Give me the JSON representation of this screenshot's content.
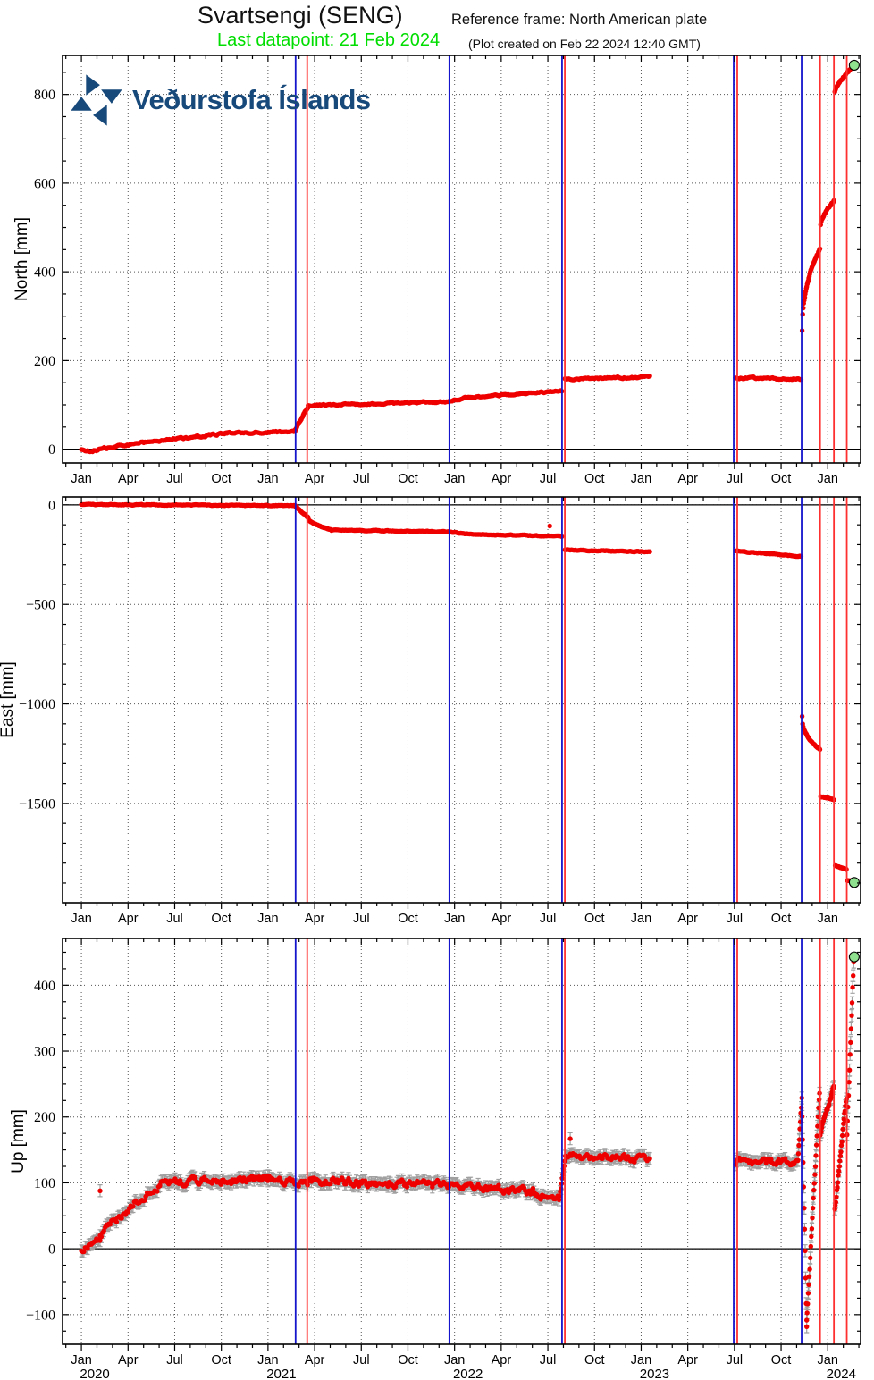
{
  "header": {
    "title": "Svartsengi (SENG)",
    "reference_frame": "Reference frame: North American plate",
    "last_datapoint": "Last datapoint: 21 Feb 2024",
    "created_note": "(Plot created on Feb 22 2024 12:40 GMT)"
  },
  "logo": {
    "text": "Veðurstofa Íslands",
    "icon": "pinwheel-icon"
  },
  "colors": {
    "data_point": "#ee0000",
    "error_bar": "#a0a0a0",
    "event_line_blue": "#1414cc",
    "event_line_red": "#ff3030",
    "last_point_fill": "#8fe08f",
    "subtitle_green": "#00dd00",
    "logo_blue": "#17497b",
    "grid_dotted": "#555555",
    "frame": "#000000"
  },
  "x_axis": {
    "xlim": [
      2019.899,
      2024.176
    ],
    "quarter_label_names": {
      "0": "Jan",
      "3": "Apr",
      "6": "Jul",
      "9": "Oct"
    },
    "years": [
      {
        "t": 2020.0,
        "label": "2020"
      },
      {
        "t": 2021.0,
        "label": "2021"
      },
      {
        "t": 2022.0,
        "label": "2022"
      },
      {
        "t": 2023.0,
        "label": "2023"
      },
      {
        "t": 2024.0,
        "label": "2024"
      }
    ]
  },
  "event_lines": [
    {
      "t": 2021.148,
      "color": "blue"
    },
    {
      "t": 2021.21,
      "color": "red"
    },
    {
      "t": 2021.972,
      "color": "blue"
    },
    {
      "t": 2022.576,
      "color": "blue"
    },
    {
      "t": 2022.591,
      "color": "red"
    },
    {
      "t": 2023.496,
      "color": "blue"
    },
    {
      "t": 2023.515,
      "color": "red"
    },
    {
      "t": 2023.86,
      "color": "blue"
    },
    {
      "t": 2023.959,
      "color": "red"
    },
    {
      "t": 2024.033,
      "color": "red"
    },
    {
      "t": 2024.102,
      "color": "red"
    }
  ],
  "segment_format": [
    "t0_decimal_year",
    "t1_decimal_year",
    "v0_mm",
    "v1_mm",
    "noise_mm",
    "curve_exponent",
    "step_days"
  ],
  "chart_data": [
    {
      "id": "north",
      "type": "scatter",
      "ylabel": "North [mm]",
      "ylim": [
        -31,
        888
      ],
      "ytick_major": 200,
      "ytick_minor": 50,
      "zero_line": true,
      "point_error_mm": 3,
      "segments": [
        [
          2020.0,
          2020.06,
          -2,
          -6,
          2.5,
          1,
          2.5
        ],
        [
          2020.06,
          2020.78,
          -4,
          36,
          3,
          0.8,
          2.5
        ],
        [
          2020.78,
          2021.145,
          36,
          40,
          2.5,
          1,
          2.5
        ],
        [
          2021.145,
          2021.215,
          44,
          96,
          2.5,
          1,
          1.2
        ],
        [
          2021.215,
          2021.97,
          99,
          107,
          2.2,
          1,
          2.5
        ],
        [
          2021.97,
          2022.06,
          108,
          116,
          2,
          1,
          2
        ],
        [
          2022.06,
          2022.575,
          116,
          131,
          2.2,
          1,
          2.5
        ],
        [
          2022.592,
          2023.046,
          158,
          163,
          2.4,
          1,
          2.5
        ],
        [
          2023.505,
          2023.857,
          161,
          158,
          2.4,
          1,
          2.5
        ],
        [
          2023.863,
          2023.958,
          268,
          452,
          3,
          0.45,
          1
        ],
        [
          2023.962,
          2024.033,
          505,
          560,
          2.5,
          0.6,
          1
        ],
        [
          2024.038,
          2024.138,
          806,
          862,
          2.5,
          0.7,
          1
        ]
      ],
      "extra_points": [],
      "last_point": [
        2024.142,
        866
      ]
    },
    {
      "id": "east",
      "type": "scatter",
      "ylabel": "East [mm]",
      "ylim": [
        -1999,
        40
      ],
      "ytick_major": 500,
      "ytick_minor": 100,
      "zero_line": true,
      "point_error_mm": 5,
      "segments": [
        [
          2020.0,
          2021.145,
          2,
          -4,
          2.8,
          1,
          2.5
        ],
        [
          2021.145,
          2021.215,
          -5,
          -62,
          3,
          1,
          1.2
        ],
        [
          2021.215,
          2021.34,
          -64,
          -125,
          3,
          0.5,
          1.2
        ],
        [
          2021.34,
          2021.97,
          -127,
          -134,
          2.8,
          1,
          2.5
        ],
        [
          2021.97,
          2022.06,
          -135,
          -146,
          2.5,
          1,
          2
        ],
        [
          2022.06,
          2022.575,
          -146,
          -158,
          2.8,
          1,
          2.5
        ],
        [
          2022.592,
          2023.046,
          -226,
          -236,
          2.8,
          1,
          2.5
        ],
        [
          2023.505,
          2023.857,
          -232,
          -258,
          2.8,
          1,
          2.5
        ],
        [
          2023.863,
          2023.958,
          -1062,
          -1228,
          4,
          0.4,
          1
        ],
        [
          2023.962,
          2024.033,
          -1466,
          -1480,
          3,
          1,
          1
        ],
        [
          2024.04,
          2024.1,
          -1812,
          -1832,
          3,
          1,
          1
        ],
        [
          2024.105,
          2024.138,
          -1886,
          -1894,
          3,
          1,
          1
        ]
      ],
      "extra_points": [
        [
          2022.51,
          -106
        ]
      ],
      "last_point": [
        2024.142,
        -1897
      ]
    },
    {
      "id": "up",
      "type": "scatter",
      "ylabel": "Up [mm]",
      "ylim": [
        -145,
        471
      ],
      "ytick_major": 100,
      "ytick_minor": 25,
      "zero_line": true,
      "point_error_mm": 9,
      "segments": [
        [
          2020.0,
          2020.1,
          -2,
          18,
          7,
          1,
          2.5
        ],
        [
          2020.1,
          2020.42,
          20,
          98,
          8,
          0.9,
          2.5
        ],
        [
          2020.42,
          2021.0,
          100,
          106,
          8,
          1,
          2.5
        ],
        [
          2021.0,
          2021.5,
          106,
          101,
          8,
          1,
          2.5
        ],
        [
          2021.5,
          2021.99,
          100,
          96,
          8,
          1,
          2.5
        ],
        [
          2021.99,
          2022.42,
          96,
          86,
          8,
          1,
          2.5
        ],
        [
          2022.42,
          2022.56,
          84,
          76,
          7,
          1,
          2.5
        ],
        [
          2022.563,
          2022.594,
          80,
          136,
          5,
          1,
          1.2
        ],
        [
          2022.6,
          2023.046,
          141,
          136,
          7,
          1,
          2.5
        ],
        [
          2023.505,
          2023.84,
          131,
          131,
          7,
          1,
          2.5
        ],
        [
          2023.84,
          2023.861,
          136,
          226,
          6,
          1,
          1
        ],
        [
          2023.863,
          2023.887,
          205,
          -116,
          8,
          1,
          1
        ],
        [
          2023.887,
          2023.956,
          -112,
          238,
          6,
          1,
          1
        ],
        [
          2023.96,
          2024.032,
          174,
          246,
          5,
          1,
          1
        ],
        [
          2024.038,
          2024.1,
          58,
          230,
          5,
          1,
          1
        ],
        [
          2024.103,
          2024.139,
          170,
          436,
          5,
          1,
          1
        ]
      ],
      "extra_points": [
        [
          2020.1,
          88
        ],
        [
          2022.62,
          167
        ]
      ],
      "last_point": [
        2024.142,
        443
      ]
    }
  ]
}
